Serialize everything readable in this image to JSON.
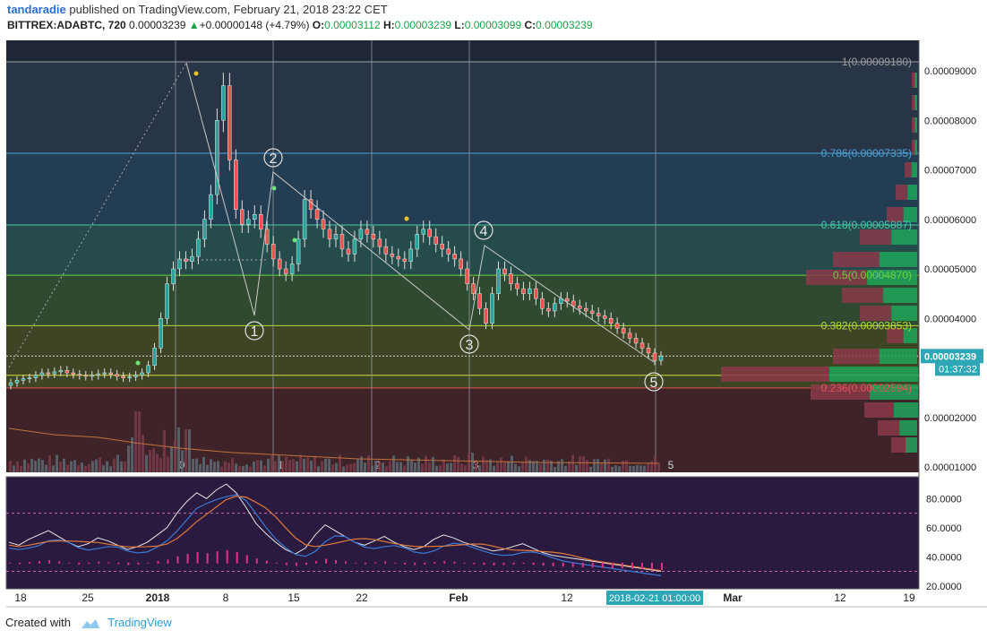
{
  "header": {
    "author": "tandaradie",
    "published": "published on TradingView.com, February 21, 2018 23:22 CET",
    "symbol": "BITTREX:ADABTC, 720",
    "price": "0.00003239",
    "change": "+0.00000148 (+4.79%)",
    "o_label": "O:",
    "o": "0.00003112",
    "h_label": "H:",
    "h": "0.00003239",
    "l_label": "L:",
    "l": "0.00003099",
    "c_label": "C:",
    "c": "0.00003239"
  },
  "footer": {
    "created": "Created with",
    "brand": "TradingView"
  },
  "colors": {
    "up": "#26a69a",
    "down": "#ef5350",
    "bg_dark": "#2b2b2b"
  },
  "chart_data": {
    "type": "candlestick",
    "price_axis_labels": [
      "0.00009000",
      "0.00008000",
      "0.00007000",
      "0.00006000",
      "0.00005000",
      "0.00004000",
      "0.00003000",
      "0.00002000",
      "0.00001000"
    ],
    "price_range": [
      1e-05,
      9.3e-05
    ],
    "last_price_label": "0.00003239",
    "countdown_label": "01:37:32",
    "time_axis_labels": [
      "18",
      "25",
      "2018",
      "8",
      "15",
      "22",
      "Feb",
      "12",
      "Mar",
      "12",
      "19"
    ],
    "crosshair_time_label": "2018-02-21 01:00:00",
    "fib_levels": [
      {
        "label": "1(0.00009180)",
        "price": 9.18e-05,
        "color": "#9e9e9e"
      },
      {
        "label": "0.786(0.00007335)",
        "price": 7.335e-05,
        "color": "#4fa3d9"
      },
      {
        "label": "0.618(0.00005887)",
        "price": 5.887e-05,
        "color": "#48c9a9"
      },
      {
        "label": "0.5(0.00004870)",
        "price": 4.87e-05,
        "color": "#6fcf3c"
      },
      {
        "label": "0.382(0.00003853)",
        "price": 3.853e-05,
        "color": "#b5d93a"
      },
      {
        "label": "0.236(0.00002594)",
        "price": 2.594e-05,
        "color": "#e25555"
      }
    ],
    "wave_labels": [
      "1",
      "2",
      "3",
      "4",
      "5"
    ],
    "time_cycle_labels": [
      "0",
      "1",
      "2",
      "3",
      "5"
    ],
    "close_series": [
      2.7e-05,
      2.75e-05,
      2.78e-05,
      2.8e-05,
      2.85e-05,
      2.9e-05,
      2.88e-05,
      2.92e-05,
      2.95e-05,
      2.9e-05,
      2.87e-05,
      2.85e-05,
      2.83e-05,
      2.85e-05,
      2.88e-05,
      2.9e-05,
      2.87e-05,
      2.83e-05,
      2.8e-05,
      2.82e-05,
      2.85e-05,
      2.9e-05,
      3.05e-05,
      3.4e-05,
      4e-05,
      4.7e-05,
      5e-05,
      5.2e-05,
      5.15e-05,
      5.25e-05,
      5.6e-05,
      6e-05,
      6.5e-05,
      8e-05,
      8.7e-05,
      7.2e-05,
      6.2e-05,
      5.9e-05,
      6e-05,
      6.1e-05,
      5.8e-05,
      5.5e-05,
      5.2e-05,
      5e-05,
      4.9e-05,
      5.1e-05,
      5.6e-05,
      6.4e-05,
      6.2e-05,
      6e-05,
      5.8e-05,
      5.6e-05,
      5.7e-05,
      5.4e-05,
      5.3e-05,
      5.6e-05,
      5.8e-05,
      5.7e-05,
      5.6e-05,
      5.45e-05,
      5.3e-05,
      5.25e-05,
      5.2e-05,
      5.15e-05,
      5.4e-05,
      5.7e-05,
      5.8e-05,
      5.65e-05,
      5.5e-05,
      5.4e-05,
      5.3e-05,
      5.2e-05,
      5e-05,
      4.7e-05,
      4.5e-05,
      4.2e-05,
      3.9e-05,
      4.5e-05,
      5e-05,
      4.9e-05,
      4.7e-05,
      4.6e-05,
      4.5e-05,
      4.6e-05,
      4.4e-05,
      4.2e-05,
      4.15e-05,
      4.3e-05,
      4.4e-05,
      4.35e-05,
      4.25e-05,
      4.2e-05,
      4.15e-05,
      4.1e-05,
      4.05e-05,
      4e-05,
      3.9e-05,
      3.8e-05,
      3.7e-05,
      3.6e-05,
      3.5e-05,
      3.4e-05,
      3.3e-05,
      3.15e-05,
      3.24e-05
    ],
    "oscillator_axis_labels": [
      "80.0000",
      "60.0000",
      "40.0000",
      "20.0000"
    ],
    "oscillator_range": [
      18,
      95
    ],
    "oscillator_line": [
      50,
      48,
      52,
      55,
      58,
      54,
      50,
      47,
      49,
      53,
      51,
      48,
      45,
      47,
      50,
      55,
      60,
      70,
      78,
      84,
      80,
      86,
      90,
      84,
      74,
      63,
      56,
      50,
      45,
      42,
      46,
      55,
      62,
      58,
      54,
      50,
      48,
      51,
      54,
      50,
      47,
      45,
      47,
      52,
      55,
      53,
      50,
      48,
      46,
      44,
      45,
      47,
      49,
      46,
      43,
      41,
      40,
      39,
      38,
      37,
      36,
      35,
      34,
      33,
      32,
      31,
      30
    ]
  }
}
